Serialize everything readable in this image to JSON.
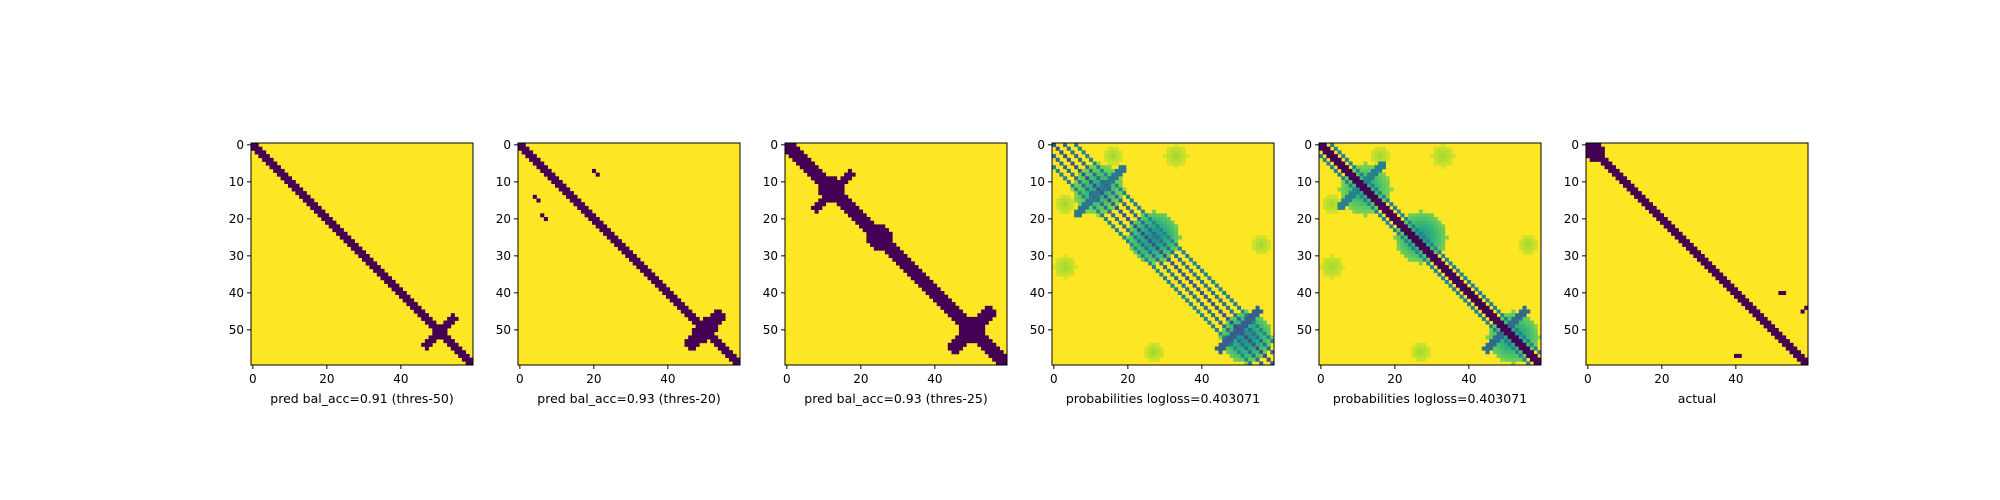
{
  "colors": {
    "low": "#440154",
    "high": "#fde725",
    "viridis": [
      "#440154",
      "#482878",
      "#3e4989",
      "#31688e",
      "#26828e",
      "#1f9e89",
      "#35b779",
      "#6ece58",
      "#b5de2b",
      "#fde725"
    ],
    "frame": "#000000"
  },
  "chart_data": [
    {
      "type": "heatmap",
      "title": "",
      "xlabel": "pred bal_acc=0.91 (thres-50)",
      "ylabel": "",
      "n": 60,
      "xlim": [
        0,
        59
      ],
      "ylim": [
        59,
        0
      ],
      "x_ticks": [
        0,
        20,
        40
      ],
      "y_ticks": [
        0,
        10,
        20,
        30,
        40,
        50
      ],
      "kind": "binary",
      "bands": [
        {
          "s": 0,
          "e": 60,
          "half": 1.4,
          "v": 0
        },
        {
          "s": 43,
          "e": 58,
          "half": 0.9,
          "v": 0,
          "anti": true
        }
      ],
      "blobs": [],
      "dots": []
    },
    {
      "type": "heatmap",
      "title": "",
      "xlabel": "pred bal_acc=0.93 (thres-20)",
      "ylabel": "",
      "n": 60,
      "xlim": [
        0,
        59
      ],
      "ylim": [
        59,
        0
      ],
      "x_ticks": [
        0,
        20,
        40
      ],
      "y_ticks": [
        0,
        10,
        20,
        30,
        40,
        50
      ],
      "kind": "binary",
      "bands": [
        {
          "s": 0,
          "e": 60,
          "half": 1.8,
          "v": 0
        },
        {
          "s": 42,
          "e": 58,
          "half": 1.2,
          "v": 0,
          "anti": true
        }
      ],
      "blobs": [
        {
          "cx": 50,
          "cy": 50,
          "r": 3.0,
          "v": 0
        }
      ],
      "dots": [
        [
          20,
          7
        ],
        [
          21,
          8
        ],
        [
          6,
          19
        ],
        [
          7,
          20
        ],
        [
          4,
          14
        ],
        [
          5,
          15
        ]
      ]
    },
    {
      "type": "heatmap",
      "title": "",
      "xlabel": "pred bal_acc=0.93 (thres-25)",
      "ylabel": "",
      "n": 60,
      "xlim": [
        0,
        59
      ],
      "ylim": [
        59,
        0
      ],
      "x_ticks": [
        0,
        20,
        40
      ],
      "y_ticks": [
        0,
        10,
        20,
        30,
        40,
        50
      ],
      "kind": "binary",
      "bands": [
        {
          "s": 0,
          "e": 60,
          "half": 2.0,
          "v": 0
        },
        {
          "s": 3,
          "e": 22,
          "half": 0.8,
          "v": 0,
          "anti": true
        },
        {
          "s": 40,
          "e": 60,
          "half": 1.4,
          "v": 0,
          "anti": true
        }
      ],
      "blobs": [
        {
          "cx": 12,
          "cy": 12,
          "r": 3.5,
          "v": 0
        },
        {
          "cx": 25,
          "cy": 25,
          "r": 3.5,
          "v": 0
        },
        {
          "cx": 50,
          "cy": 50,
          "r": 3.2,
          "v": 0
        }
      ],
      "dots": []
    },
    {
      "type": "heatmap",
      "title": "",
      "xlabel": "probabilities logloss=0.403071",
      "ylabel": "",
      "n": 60,
      "xlim": [
        0,
        59
      ],
      "ylim": [
        59,
        0
      ],
      "x_ticks": [
        0,
        20,
        40
      ],
      "y_ticks": [
        0,
        10,
        20,
        30,
        40,
        50
      ],
      "kind": "prob",
      "bands": [
        {
          "s": 0,
          "e": 60,
          "half": 0.6,
          "off": 0,
          "v": 0.25
        },
        {
          "s": 0,
          "e": 60,
          "half": 0.6,
          "off": 3,
          "v": 0.35
        },
        {
          "s": 0,
          "e": 60,
          "half": 0.6,
          "off": -3,
          "v": 0.35
        },
        {
          "s": 0,
          "e": 60,
          "half": 0.6,
          "off": 6,
          "v": 0.45
        },
        {
          "s": 0,
          "e": 60,
          "half": 0.6,
          "off": -6,
          "v": 0.45
        },
        {
          "s": 0,
          "e": 25,
          "half": 0.7,
          "v": 0.4,
          "anti": true
        },
        {
          "s": 40,
          "e": 60,
          "half": 0.9,
          "v": 0.3,
          "anti": true
        }
      ],
      "blobs": [
        {
          "cx": 12,
          "cy": 12,
          "r": 7,
          "v": 0.55
        },
        {
          "cx": 27,
          "cy": 25,
          "r": 7,
          "v": 0.45
        },
        {
          "cx": 52,
          "cy": 52,
          "r": 7,
          "v": 0.45
        },
        {
          "cx": 56,
          "cy": 27,
          "r": 2.5,
          "v": 0.85
        },
        {
          "cx": 27,
          "cy": 56,
          "r": 2.5,
          "v": 0.85
        },
        {
          "cx": 3,
          "cy": 33,
          "r": 3,
          "v": 0.85
        },
        {
          "cx": 33,
          "cy": 3,
          "r": 3,
          "v": 0.85
        },
        {
          "cx": 16,
          "cy": 3,
          "r": 2.5,
          "v": 0.85
        },
        {
          "cx": 3,
          "cy": 16,
          "r": 2.5,
          "v": 0.85
        }
      ],
      "dots": []
    },
    {
      "type": "heatmap",
      "title": "",
      "xlabel": "probabilities logloss=0.403071",
      "ylabel": "",
      "n": 60,
      "xlim": [
        0,
        59
      ],
      "ylim": [
        59,
        0
      ],
      "x_ticks": [
        0,
        20,
        40
      ],
      "y_ticks": [
        0,
        10,
        20,
        30,
        40,
        50
      ],
      "kind": "prob",
      "bands": [
        {
          "s": 0,
          "e": 60,
          "half": 1.6,
          "v": 0
        },
        {
          "s": 0,
          "e": 60,
          "half": 0.6,
          "off": 3,
          "v": 0.45
        },
        {
          "s": 0,
          "e": 60,
          "half": 0.6,
          "off": -3,
          "v": 0.45
        },
        {
          "s": 0,
          "e": 22,
          "half": 0.7,
          "v": 0.45,
          "anti": true
        },
        {
          "s": 40,
          "e": 60,
          "half": 0.9,
          "v": 0.35,
          "anti": true
        }
      ],
      "blobs": [
        {
          "cx": 12,
          "cy": 12,
          "r": 7,
          "v": 0.55
        },
        {
          "cx": 27,
          "cy": 25,
          "r": 7,
          "v": 0.5
        },
        {
          "cx": 52,
          "cy": 52,
          "r": 7,
          "v": 0.5
        },
        {
          "cx": 56,
          "cy": 27,
          "r": 2.5,
          "v": 0.85
        },
        {
          "cx": 27,
          "cy": 56,
          "r": 2.5,
          "v": 0.85
        },
        {
          "cx": 3,
          "cy": 33,
          "r": 3,
          "v": 0.85
        },
        {
          "cx": 33,
          "cy": 3,
          "r": 3,
          "v": 0.85
        },
        {
          "cx": 16,
          "cy": 3,
          "r": 2.5,
          "v": 0.85
        },
        {
          "cx": 3,
          "cy": 16,
          "r": 2.5,
          "v": 0.85
        }
      ],
      "dots": []
    },
    {
      "type": "heatmap",
      "title": "",
      "xlabel": "actual",
      "ylabel": "",
      "n": 60,
      "xlim": [
        0,
        59
      ],
      "ylim": [
        59,
        0
      ],
      "x_ticks": [
        0,
        20,
        40
      ],
      "y_ticks": [
        0,
        10,
        20,
        30,
        40,
        50
      ],
      "kind": "binary",
      "bands": [
        {
          "s": 0,
          "e": 60,
          "half": 1.4,
          "v": 0
        }
      ],
      "blobs": [
        {
          "cx": 2,
          "cy": 2,
          "r": 2.6,
          "v": 0
        }
      ],
      "dots": [
        [
          58,
          45
        ],
        [
          59,
          44
        ],
        [
          40,
          57
        ],
        [
          41,
          57
        ],
        [
          52,
          40
        ],
        [
          53,
          40
        ]
      ]
    }
  ]
}
